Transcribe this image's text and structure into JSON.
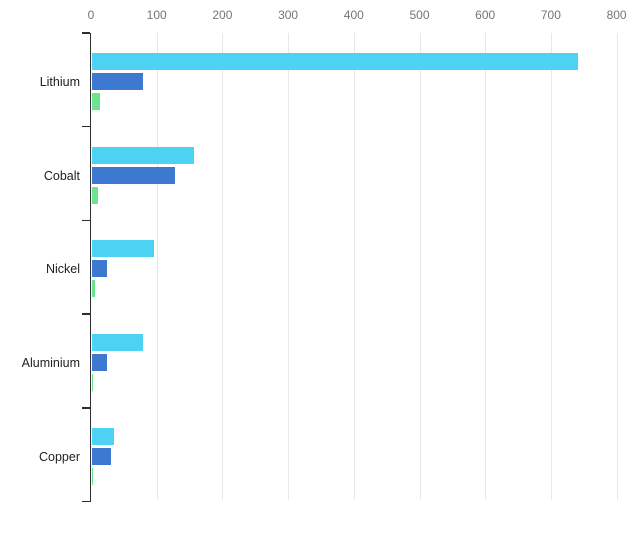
{
  "chart_data": {
    "type": "bar",
    "orientation": "horizontal",
    "title": "",
    "xlabel": "",
    "ylabel": "",
    "legend": false,
    "grid": true,
    "x_axis": {
      "position": "top",
      "min": 0,
      "max": 800,
      "tick_step": 100,
      "tick_labels": [
        "0",
        "100",
        "200",
        "300",
        "400",
        "500",
        "600",
        "700",
        "800"
      ]
    },
    "categories": [
      "Lithium",
      "Cobalt",
      "Nickel",
      "Aluminium",
      "Copper"
    ],
    "series": [
      {
        "name": "cyan-series",
        "color": "#4dd2f4",
        "values": [
          740,
          156,
          95,
          78,
          35
        ]
      },
      {
        "name": "blue-series",
        "color": "#3d78d1",
        "values": [
          78,
          127,
          24,
          23,
          29
        ]
      },
      {
        "name": "green-series",
        "color": "#6ce48f",
        "values": [
          13,
          10,
          5,
          3,
          2
        ]
      }
    ],
    "colors": {
      "axis_line": "#2d2d2d",
      "gridline": "#e7e7e7",
      "tick_label": "#757575",
      "category_label": "#1f1f1f",
      "background": "#ffffff"
    }
  }
}
